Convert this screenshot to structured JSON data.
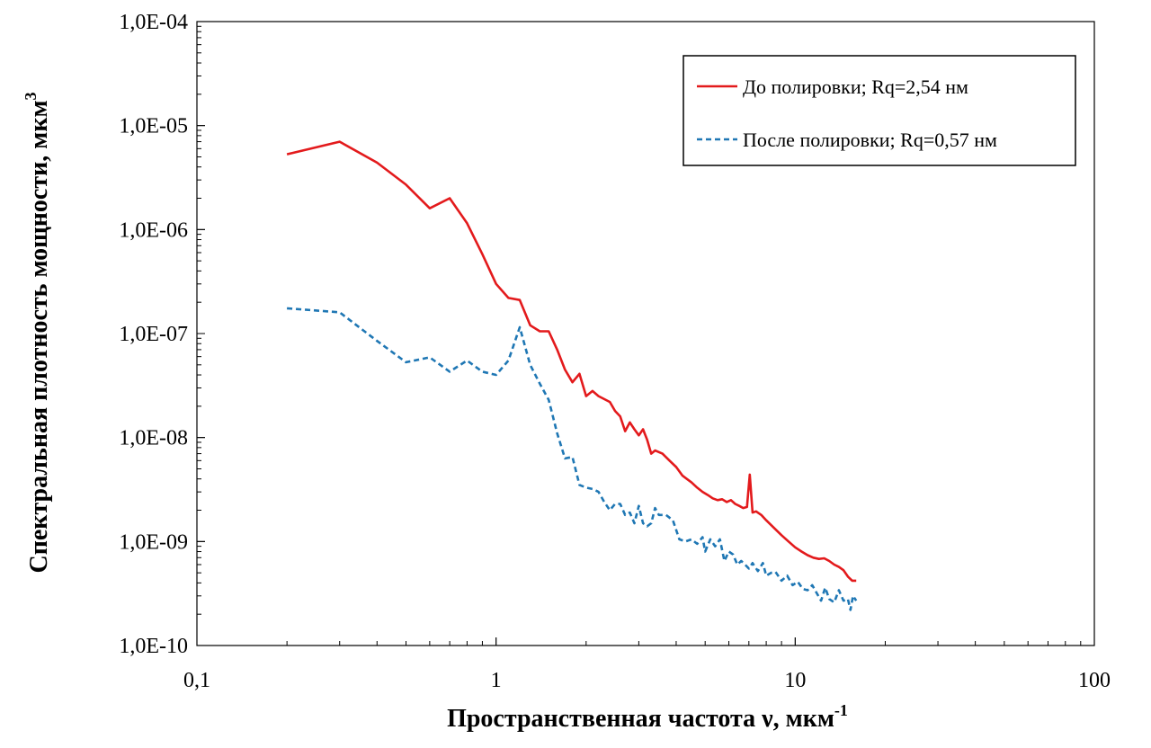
{
  "chart_data": {
    "type": "line",
    "title": "",
    "x_scale": "log",
    "y_scale": "log",
    "xlim": [
      0.1,
      100
    ],
    "ylim": [
      1e-10,
      0.0001
    ],
    "grid": false,
    "legend_position": "top-right",
    "xlabel": "Пространственная частота ν, мкм",
    "xlabel_sup": "-1",
    "ylabel": "Спектральная плотность мощности, мкм",
    "ylabel_sup": "3",
    "x_ticks": [
      {
        "value": 0.1,
        "label": "0,1"
      },
      {
        "value": 1,
        "label": "1"
      },
      {
        "value": 10,
        "label": "10"
      },
      {
        "value": 100,
        "label": "100"
      }
    ],
    "y_ticks": [
      {
        "value": 0.0001,
        "label": "1,0E-04"
      },
      {
        "value": 1e-05,
        "label": "1,0E-05"
      },
      {
        "value": 1e-06,
        "label": "1,0E-06"
      },
      {
        "value": 1e-07,
        "label": "1,0E-07"
      },
      {
        "value": 1e-08,
        "label": "1,0E-08"
      },
      {
        "value": 1e-09,
        "label": "1,0E-09"
      },
      {
        "value": 1e-10,
        "label": "1,0E-10"
      }
    ],
    "series": [
      {
        "name": "До полировки; Rq=2,54 нм",
        "color": "#e31a1c",
        "dash": "solid",
        "points": [
          [
            0.2,
            5.3e-06
          ],
          [
            0.3,
            7e-06
          ],
          [
            0.4,
            4.4e-06
          ],
          [
            0.5,
            2.7e-06
          ],
          [
            0.6,
            1.6e-06
          ],
          [
            0.7,
            2e-06
          ],
          [
            0.8,
            1.15e-06
          ],
          [
            0.9,
            5.8e-07
          ],
          [
            1.0,
            3e-07
          ],
          [
            1.1,
            2.2e-07
          ],
          [
            1.2,
            2.1e-07
          ],
          [
            1.3,
            1.2e-07
          ],
          [
            1.4,
            1.05e-07
          ],
          [
            1.5,
            1.05e-07
          ],
          [
            1.6,
            7e-08
          ],
          [
            1.7,
            4.5e-08
          ],
          [
            1.8,
            3.4e-08
          ],
          [
            1.9,
            4.1e-08
          ],
          [
            2.0,
            2.5e-08
          ],
          [
            2.1,
            2.8e-08
          ],
          [
            2.2,
            2.5e-08
          ],
          [
            2.4,
            2.2e-08
          ],
          [
            2.5,
            1.8e-08
          ],
          [
            2.6,
            1.6e-08
          ],
          [
            2.7,
            1.15e-08
          ],
          [
            2.8,
            1.4e-08
          ],
          [
            2.9,
            1.2e-08
          ],
          [
            3.0,
            1.05e-08
          ],
          [
            3.1,
            1.2e-08
          ],
          [
            3.2,
            9.5e-09
          ],
          [
            3.3,
            7e-09
          ],
          [
            3.4,
            7.5e-09
          ],
          [
            3.6,
            7e-09
          ],
          [
            3.8,
            6e-09
          ],
          [
            4.0,
            5.2e-09
          ],
          [
            4.2,
            4.3e-09
          ],
          [
            4.5,
            3.7e-09
          ],
          [
            4.7,
            3.3e-09
          ],
          [
            4.9,
            3e-09
          ],
          [
            5.1,
            2.8e-09
          ],
          [
            5.3,
            2.6e-09
          ],
          [
            5.5,
            2.5e-09
          ],
          [
            5.7,
            2.55e-09
          ],
          [
            5.9,
            2.4e-09
          ],
          [
            6.1,
            2.5e-09
          ],
          [
            6.3,
            2.3e-09
          ],
          [
            6.5,
            2.2e-09
          ],
          [
            6.7,
            2.1e-09
          ],
          [
            6.9,
            2.15e-09
          ],
          [
            7.05,
            4.4e-09
          ],
          [
            7.2,
            1.9e-09
          ],
          [
            7.4,
            1.95e-09
          ],
          [
            7.7,
            1.8e-09
          ],
          [
            8.0,
            1.6e-09
          ],
          [
            8.5,
            1.35e-09
          ],
          [
            9.0,
            1.15e-09
          ],
          [
            9.5,
            1e-09
          ],
          [
            10.0,
            8.8e-10
          ],
          [
            10.5,
            8e-10
          ],
          [
            11.0,
            7.4e-10
          ],
          [
            11.5,
            7e-10
          ],
          [
            12.0,
            6.8e-10
          ],
          [
            12.5,
            6.9e-10
          ],
          [
            13.0,
            6.5e-10
          ],
          [
            13.5,
            6e-10
          ],
          [
            14.0,
            5.7e-10
          ],
          [
            14.5,
            5.3e-10
          ],
          [
            15.0,
            4.6e-10
          ],
          [
            15.5,
            4.2e-10
          ],
          [
            16.0,
            4.2e-10
          ]
        ]
      },
      {
        "name": "После полировки; Rq=0,57 нм",
        "color": "#1f77b4",
        "dash": "dashed",
        "points": [
          [
            0.2,
            1.75e-07
          ],
          [
            0.3,
            1.6e-07
          ],
          [
            0.4,
            8.5e-08
          ],
          [
            0.5,
            5.3e-08
          ],
          [
            0.6,
            5.9e-08
          ],
          [
            0.7,
            4.3e-08
          ],
          [
            0.8,
            5.5e-08
          ],
          [
            0.9,
            4.3e-08
          ],
          [
            1.0,
            4e-08
          ],
          [
            1.1,
            5.5e-08
          ],
          [
            1.2,
            1.15e-07
          ],
          [
            1.3,
            5e-08
          ],
          [
            1.4,
            3.3e-08
          ],
          [
            1.5,
            2.3e-08
          ],
          [
            1.6,
            1.1e-08
          ],
          [
            1.7,
            6.3e-09
          ],
          [
            1.8,
            6.5e-09
          ],
          [
            1.9,
            3.5e-09
          ],
          [
            2.0,
            3.3e-09
          ],
          [
            2.1,
            3.2e-09
          ],
          [
            2.2,
            3e-09
          ],
          [
            2.3,
            2.4e-09
          ],
          [
            2.4,
            2e-09
          ],
          [
            2.5,
            2.3e-09
          ],
          [
            2.6,
            2.3e-09
          ],
          [
            2.7,
            1.8e-09
          ],
          [
            2.8,
            1.9e-09
          ],
          [
            2.9,
            1.5e-09
          ],
          [
            3.0,
            2.2e-09
          ],
          [
            3.1,
            1.5e-09
          ],
          [
            3.2,
            1.4e-09
          ],
          [
            3.3,
            1.5e-09
          ],
          [
            3.4,
            2.1e-09
          ],
          [
            3.5,
            1.8e-09
          ],
          [
            3.7,
            1.8e-09
          ],
          [
            3.9,
            1.6e-09
          ],
          [
            4.1,
            1.05e-09
          ],
          [
            4.3,
            1e-09
          ],
          [
            4.5,
            1.05e-09
          ],
          [
            4.7,
            9.5e-10
          ],
          [
            4.9,
            1.1e-09
          ],
          [
            5.0,
            8e-10
          ],
          [
            5.2,
            1.05e-09
          ],
          [
            5.4,
            9e-10
          ],
          [
            5.6,
            1.05e-09
          ],
          [
            5.8,
            6.5e-10
          ],
          [
            6.0,
            8e-10
          ],
          [
            6.2,
            7.5e-10
          ],
          [
            6.4,
            6e-10
          ],
          [
            6.6,
            6.5e-10
          ],
          [
            6.8,
            6e-10
          ],
          [
            7.0,
            5.5e-10
          ],
          [
            7.2,
            6.2e-10
          ],
          [
            7.5,
            5.2e-10
          ],
          [
            7.8,
            6.2e-10
          ],
          [
            8.0,
            4.7e-10
          ],
          [
            8.3,
            5e-10
          ],
          [
            8.6,
            5.1e-10
          ],
          [
            9.0,
            4.2e-10
          ],
          [
            9.4,
            4.7e-10
          ],
          [
            9.8,
            3.8e-10
          ],
          [
            10.2,
            4.1e-10
          ],
          [
            10.6,
            3.5e-10
          ],
          [
            11.0,
            3.4e-10
          ],
          [
            11.4,
            3.8e-10
          ],
          [
            11.8,
            3.2e-10
          ],
          [
            12.2,
            2.7e-10
          ],
          [
            12.6,
            3.6e-10
          ],
          [
            13.0,
            2.8e-10
          ],
          [
            13.5,
            2.6e-10
          ],
          [
            14.0,
            3.4e-10
          ],
          [
            14.5,
            2.7e-10
          ],
          [
            15.0,
            2.8e-10
          ],
          [
            15.3,
            2.2e-10
          ],
          [
            15.6,
            3e-10
          ],
          [
            16.0,
            2.7e-10
          ]
        ]
      }
    ]
  }
}
